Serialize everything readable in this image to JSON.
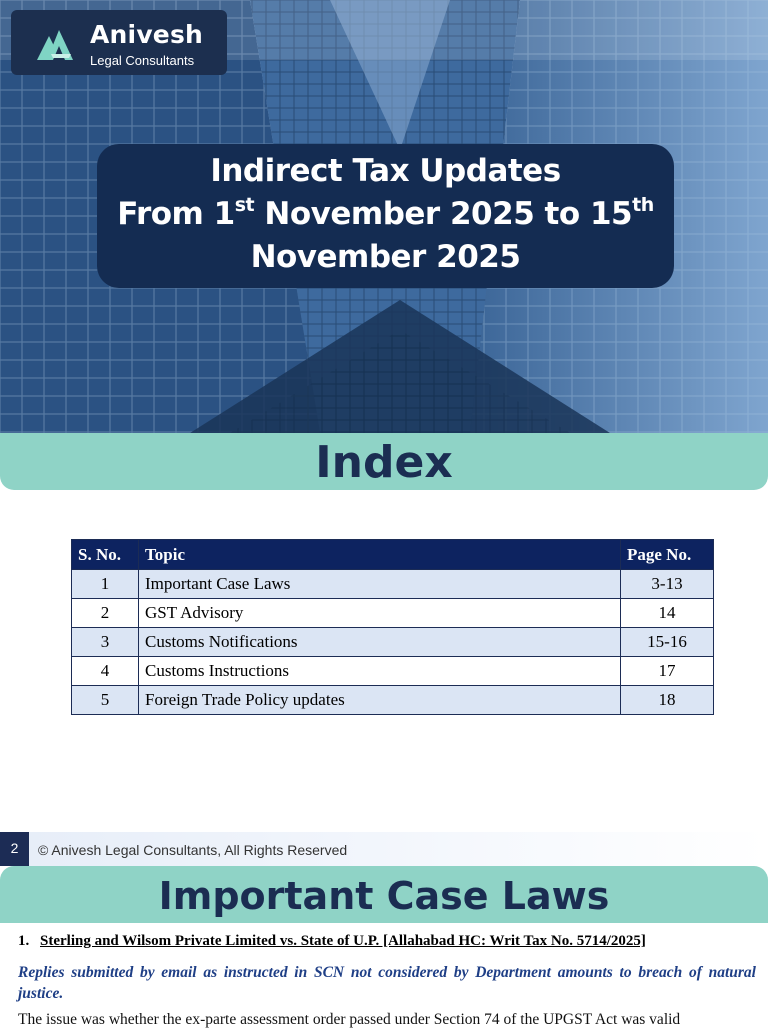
{
  "logo": {
    "brand": "Anivesh",
    "subtitle": "Legal Consultants"
  },
  "hero": {
    "line1": "Indirect Tax Updates",
    "line2_a": "From 1",
    "line2_sup1": "st",
    "line2_b": " November 2025 to 15",
    "line2_sup2": "th",
    "line3": "November 2025"
  },
  "index_banner": "Index",
  "table": {
    "headers": [
      "S. No.",
      "Topic",
      "Page No."
    ],
    "rows": [
      {
        "sno": "1",
        "topic": "Important Case Laws",
        "page": "3-13"
      },
      {
        "sno": "2",
        "topic": "GST Advisory",
        "page": "14"
      },
      {
        "sno": "3",
        "topic": "Customs Notifications",
        "page": "15-16"
      },
      {
        "sno": "4",
        "topic": "Customs Instructions",
        "page": "17"
      },
      {
        "sno": "5",
        "topic": "Foreign Trade Policy updates",
        "page": "18"
      }
    ]
  },
  "footer": {
    "page_number": "2",
    "copyright": "© Anivesh Legal Consultants, All Rights Reserved"
  },
  "cases_banner": "Important Case Laws",
  "case1": {
    "number": "1.",
    "title": "Sterling and Wilsom Private Limited vs. State of U.P.  [Allahabad HC: Writ Tax No. 5714/2025]",
    "summary": "Replies submitted by email as instructed in SCN not considered by Department amounts to breach of natural justice.",
    "body": "The issue was whether the ex-parte assessment order passed under Section 74 of the UPGST Act was valid"
  },
  "colors": {
    "navy": "#142c52",
    "teal": "#8fd3c6",
    "table_header": "#0d2360",
    "row_alt": "#dbe5f4",
    "summary_blue": "#1f3f86"
  },
  "icons": [
    "anivesh-logo-mark"
  ]
}
